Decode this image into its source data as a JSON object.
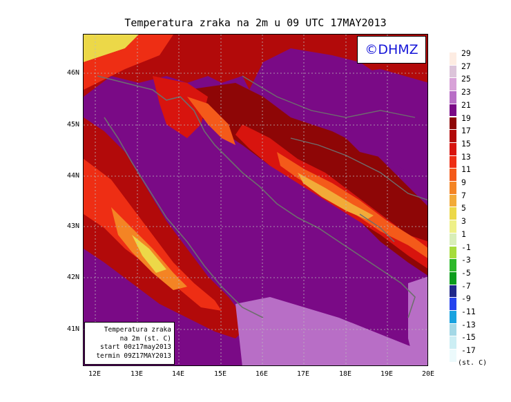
{
  "title": "Temperatura zraka na 2m u 09 UTC 17MAY2013",
  "logo": "©DHMZ",
  "info": {
    "line1": "Temperatura zraka",
    "line2": "na 2m (st. C)",
    "line3": "start 00z17may2013",
    "line4": "termin 09Z17MAY2013"
  },
  "lat_labels": [
    "46N",
    "45N",
    "44N",
    "43N",
    "42N",
    "41N"
  ],
  "lon_labels": [
    "12E",
    "13E",
    "14E",
    "15E",
    "16E",
    "17E",
    "18E",
    "19E",
    "20E"
  ],
  "colorbar": {
    "unit": "(st. C)",
    "labels": [
      "29",
      "27",
      "25",
      "23",
      "21",
      "19",
      "17",
      "15",
      "13",
      "11",
      "9",
      "7",
      "5",
      "3",
      "1",
      "-1",
      "-3",
      "-5",
      "-7",
      "-9",
      "-11",
      "-13",
      "-15",
      "-17"
    ],
    "colors": [
      "#fdece2",
      "#dcc4da",
      "#d8a2d8",
      "#b86ec6",
      "#7a0a86",
      "#8e0606",
      "#b20a0a",
      "#d8140e",
      "#ee2e14",
      "#f45a1a",
      "#f48424",
      "#f2aa38",
      "#ecd848",
      "#eef088",
      "#d8eeb8",
      "#a6dc3c",
      "#2eb82a",
      "#0c9c1c",
      "#20288a",
      "#2644ee",
      "#18a2e0",
      "#a4d8e6",
      "#cceef4",
      "#ecfafc"
    ]
  },
  "colors": {
    "sea": "#7a0a86",
    "coast": "#6e6e6e",
    "logo_text": "#1515d8"
  }
}
